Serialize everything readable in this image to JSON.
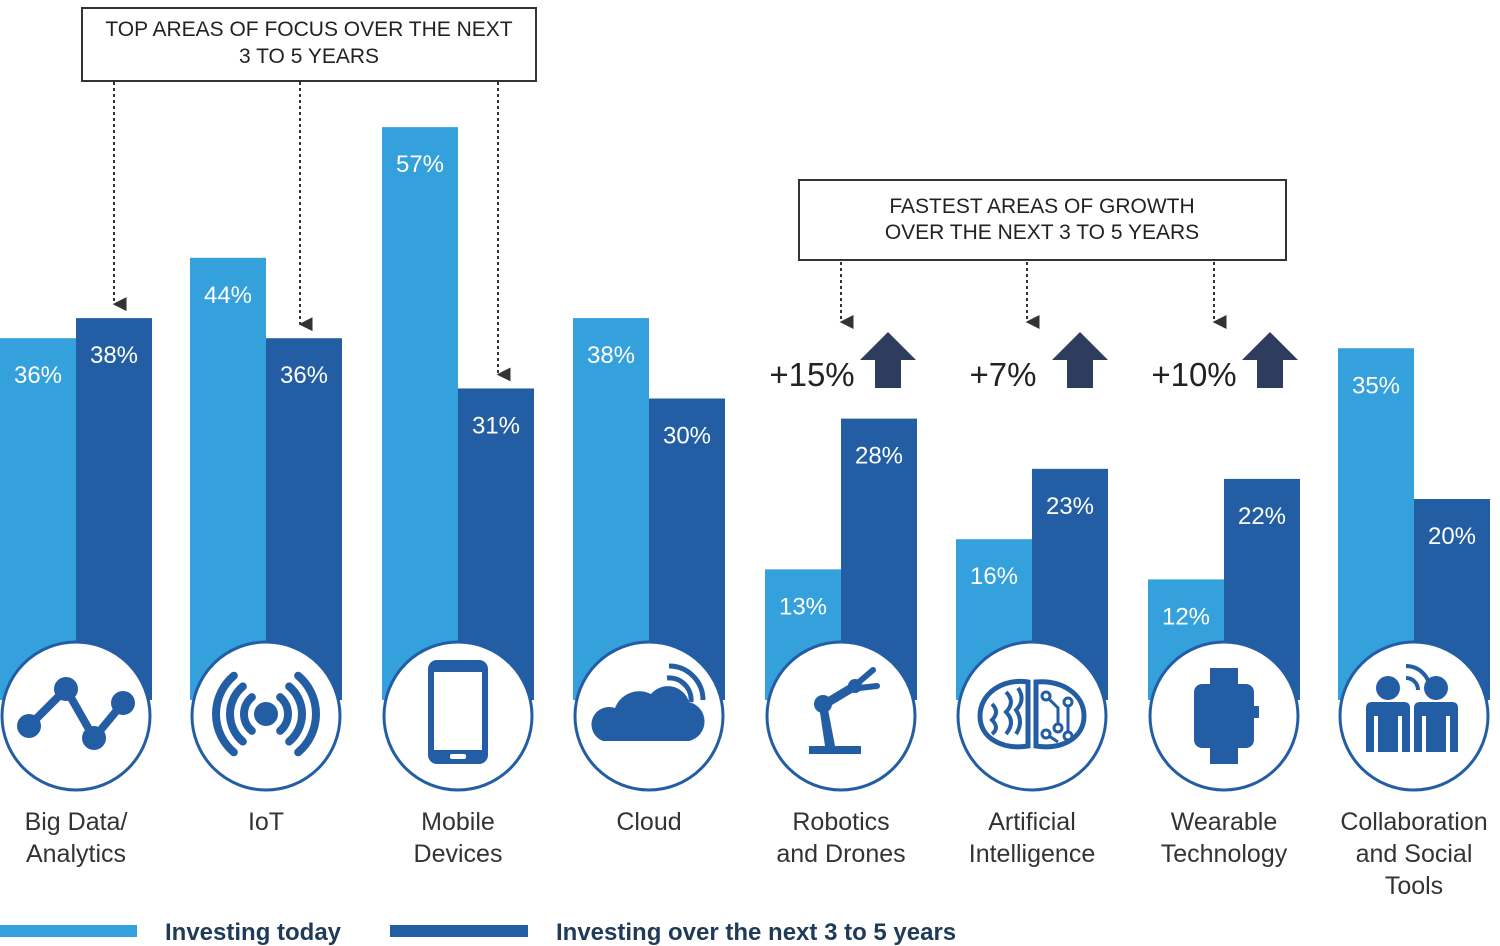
{
  "chart_data": {
    "type": "bar",
    "categories": [
      {
        "id": "big-data",
        "lines": [
          "Big Data/",
          "Analytics"
        ],
        "icon": "line-graph-icon"
      },
      {
        "id": "iot",
        "lines": [
          "IoT"
        ],
        "icon": "wireless-signal-icon"
      },
      {
        "id": "mobile",
        "lines": [
          "Mobile",
          "Devices"
        ],
        "icon": "smartphone-icon"
      },
      {
        "id": "cloud",
        "lines": [
          "Cloud"
        ],
        "icon": "cloud-icon"
      },
      {
        "id": "robotics",
        "lines": [
          "Robotics",
          "and Drones"
        ],
        "icon": "robot-arm-icon"
      },
      {
        "id": "ai",
        "lines": [
          "Artificial",
          "Intelligence"
        ],
        "icon": "brain-circuit-icon"
      },
      {
        "id": "wearable",
        "lines": [
          "Wearable",
          "Technology"
        ],
        "icon": "smartwatch-icon"
      },
      {
        "id": "collab",
        "lines": [
          "Collaboration",
          "and Social",
          "Tools"
        ],
        "icon": "people-icon"
      }
    ],
    "series": [
      {
        "name": "Investing today",
        "color": "#34a0dc",
        "values": [
          36,
          44,
          57,
          38,
          13,
          16,
          12,
          35
        ],
        "labels": [
          "36%",
          "44%",
          "57%",
          "38%",
          "13%",
          "16%",
          "12%",
          "35%"
        ]
      },
      {
        "name": "Investing over the next 3 to 5 years",
        "color": "#235ea4",
        "values": [
          38,
          36,
          31,
          30,
          28,
          23,
          22,
          20
        ],
        "labels": [
          "38%",
          "36%",
          "31%",
          "30%",
          "28%",
          "23%",
          "22%",
          "20%"
        ]
      }
    ],
    "ylim": [
      0,
      60
    ],
    "annotations": {
      "top_focus": {
        "lines": [
          "TOP AREAS OF FOCUS OVER THE NEXT",
          "3 TO 5 YEARS"
        ],
        "targets": [
          "big-data",
          "iot",
          "mobile"
        ]
      },
      "fastest_growth": {
        "lines": [
          "FASTEST AREAS OF GROWTH",
          "OVER THE NEXT 3 TO 5 YEARS"
        ],
        "targets": [
          "robotics",
          "ai",
          "wearable"
        ]
      },
      "growth": [
        {
          "category": "robotics",
          "label": "+15%"
        },
        {
          "category": "ai",
          "label": "+7%"
        },
        {
          "category": "wearable",
          "label": "+10%"
        }
      ]
    },
    "legend": [
      "Investing today",
      "Investing over the next 3 to 5 years"
    ],
    "colors": {
      "today": "#34a0dc",
      "future": "#235ea4",
      "icon": "#235ea4",
      "arrow": "#2e3c5e",
      "text": "#333333"
    }
  }
}
